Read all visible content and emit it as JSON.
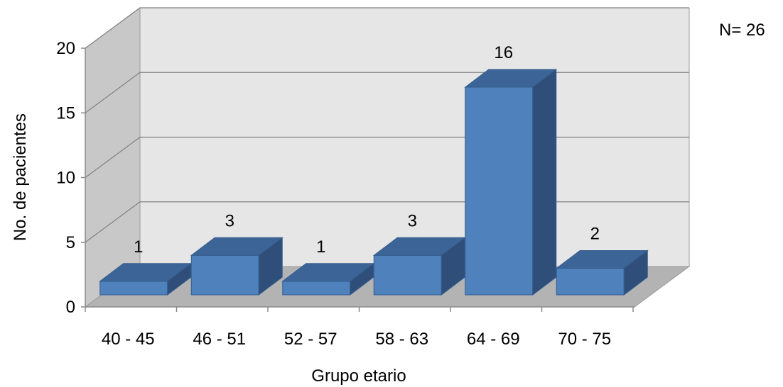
{
  "chart_data": {
    "type": "bar",
    "style": "3d-column",
    "categories": [
      "40 - 45",
      "46 - 51",
      "52 - 57",
      "58 - 63",
      "64 - 69",
      "70 - 75"
    ],
    "values": [
      1,
      3,
      1,
      3,
      16,
      2
    ],
    "data_labels": [
      "1",
      "3",
      "1",
      "3",
      "16",
      "2"
    ],
    "xlabel": "Grupo etario",
    "ylabel": "No. de pacientes",
    "ylim": [
      0,
      20
    ],
    "yticks": [
      "0",
      "5",
      "10",
      "15",
      "20"
    ],
    "annotation": "N= 26",
    "grid": true,
    "colors": {
      "bar_front": "#4F81BD",
      "bar_top": "#3C6497",
      "bar_side": "#2F4F7A",
      "wall": "#E6E6E6",
      "side_wall": "#C8C8C8",
      "floor": "#B3B3B3",
      "gridline": "#808080"
    }
  }
}
